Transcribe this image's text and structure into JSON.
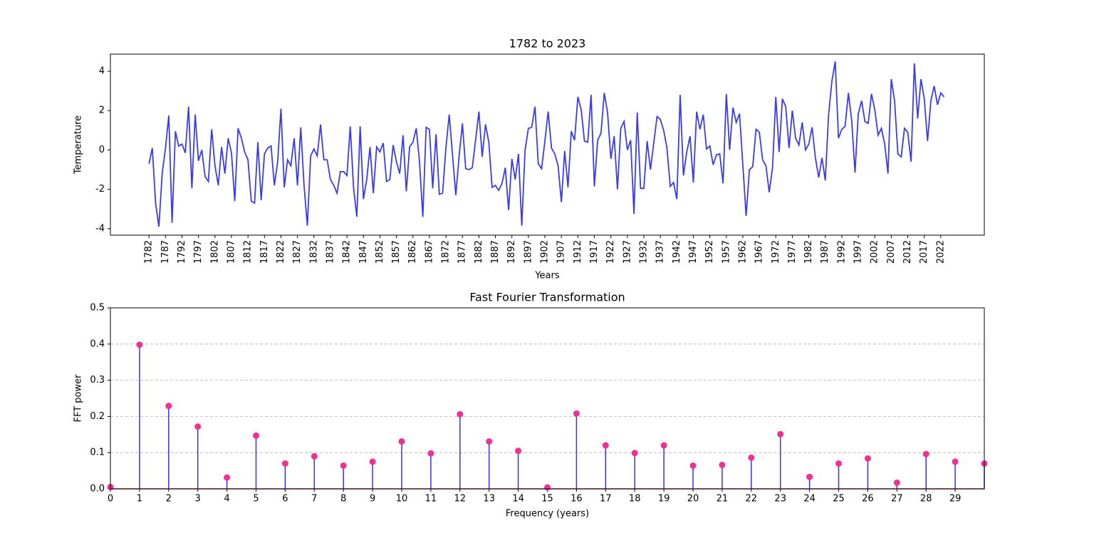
{
  "chart_data": [
    {
      "type": "line",
      "title": "1782 to 2023",
      "xlabel": "Years",
      "ylabel": "Temperature",
      "color": "#3b3bea",
      "x": [
        1782,
        1783,
        1784,
        1785,
        1786,
        1787,
        1788,
        1789,
        1790,
        1791,
        1792,
        1793,
        1794,
        1795,
        1796,
        1797,
        1798,
        1799,
        1800,
        1801,
        1802,
        1803,
        1804,
        1805,
        1806,
        1807,
        1808,
        1809,
        1810,
        1811,
        1812,
        1813,
        1814,
        1815,
        1816,
        1817,
        1818,
        1819,
        1820,
        1821,
        1822,
        1823,
        1824,
        1825,
        1826,
        1827,
        1828,
        1829,
        1830,
        1831,
        1832,
        1833,
        1834,
        1835,
        1836,
        1837,
        1838,
        1839,
        1840,
        1841,
        1842,
        1843,
        1844,
        1845,
        1846,
        1847,
        1848,
        1849,
        1850,
        1851,
        1852,
        1853,
        1854,
        1855,
        1856,
        1857,
        1858,
        1859,
        1860,
        1861,
        1862,
        1863,
        1864,
        1865,
        1866,
        1867,
        1868,
        1869,
        1870,
        1871,
        1872,
        1873,
        1874,
        1875,
        1876,
        1877,
        1878,
        1879,
        1880,
        1881,
        1882,
        1883,
        1884,
        1885,
        1886,
        1887,
        1888,
        1889,
        1890,
        1891,
        1892,
        1893,
        1894,
        1895,
        1896,
        1897,
        1898,
        1899,
        1900,
        1901,
        1902,
        1903,
        1904,
        1905,
        1906,
        1907,
        1908,
        1909,
        1910,
        1911,
        1912,
        1913,
        1914,
        1915,
        1916,
        1917,
        1918,
        1919,
        1920,
        1921,
        1922,
        1923,
        1924,
        1925,
        1926,
        1927,
        1928,
        1929,
        1930,
        1931,
        1932,
        1933,
        1934,
        1935,
        1936,
        1937,
        1938,
        1939,
        1940,
        1941,
        1942,
        1943,
        1944,
        1945,
        1946,
        1947,
        1948,
        1949,
        1950,
        1951,
        1952,
        1953,
        1954,
        1955,
        1956,
        1957,
        1958,
        1959,
        1960,
        1961,
        1962,
        1963,
        1964,
        1965,
        1966,
        1967,
        1968,
        1969,
        1970,
        1971,
        1972,
        1973,
        1974,
        1975,
        1976,
        1977,
        1978,
        1979,
        1980,
        1981,
        1982,
        1983,
        1984,
        1985,
        1986,
        1987,
        1988,
        1989,
        1990,
        1991,
        1992,
        1993,
        1994,
        1995,
        1996,
        1997,
        1998,
        1999,
        2000,
        2001,
        2002,
        2003,
        2004,
        2005,
        2006,
        2007,
        2008,
        2009,
        2010,
        2011,
        2012,
        2013,
        2014,
        2015,
        2016,
        2017,
        2018,
        2019,
        2020,
        2021,
        2022,
        2023
      ],
      "values": [
        -0.7,
        0.1,
        -2.7,
        -3.9,
        -1.2,
        0.1,
        1.75,
        -3.7,
        0.95,
        0.2,
        0.3,
        -0.15,
        2.2,
        -1.95,
        1.8,
        -0.55,
        0.0,
        -1.35,
        -1.6,
        1.05,
        -0.8,
        -1.8,
        0.15,
        -1.2,
        0.6,
        -0.15,
        -2.6,
        1.1,
        0.6,
        -0.1,
        -0.5,
        -2.6,
        -2.7,
        0.4,
        -2.55,
        -0.2,
        0.1,
        0.2,
        -1.8,
        -0.6,
        2.1,
        -1.9,
        -0.5,
        -0.8,
        0.6,
        -1.8,
        1.15,
        -1.8,
        -3.85,
        -0.3,
        0.05,
        -0.3,
        1.3,
        -0.5,
        -0.5,
        -1.5,
        -1.8,
        -2.2,
        -1.1,
        -1.1,
        -1.3,
        1.2,
        -1.9,
        -3.4,
        1.2,
        -2.5,
        -1.5,
        0.15,
        -2.2,
        0.15,
        -0.1,
        0.35,
        -1.6,
        -1.5,
        0.25,
        -0.6,
        -1.2,
        0.75,
        -2.1,
        0.15,
        0.4,
        1.1,
        -0.6,
        -3.4,
        1.15,
        1.05,
        -1.95,
        0.8,
        -2.25,
        -2.2,
        0.1,
        1.8,
        -0.25,
        -2.3,
        -0.3,
        1.35,
        -0.95,
        -1.0,
        -0.9,
        0.5,
        1.95,
        -0.35,
        1.3,
        0.4,
        -1.9,
        -1.8,
        -2.05,
        -1.7,
        -0.9,
        -3.05,
        -0.45,
        -1.5,
        -0.2,
        -3.85,
        0.0,
        1.1,
        1.15,
        2.2,
        -0.7,
        -0.95,
        0.45,
        1.95,
        0.1,
        -0.2,
        -0.8,
        -2.65,
        -0.05,
        -1.9,
        0.95,
        0.5,
        2.7,
        2.05,
        0.45,
        0.4,
        2.8,
        -1.85,
        0.5,
        0.85,
        2.9,
        1.9,
        -0.45,
        0.7,
        -2.0,
        1.1,
        1.45,
        0.0,
        0.5,
        -3.25,
        1.9,
        -1.95,
        -1.95,
        0.45,
        -1.0,
        0.35,
        1.7,
        1.55,
        1.0,
        0.1,
        -1.85,
        -1.65,
        -2.5,
        2.8,
        -1.3,
        -0.1,
        0.7,
        -1.65,
        1.95,
        1.05,
        1.8,
        0.05,
        0.2,
        -0.75,
        -0.25,
        -0.2,
        -1.7,
        2.85,
        0.0,
        2.15,
        1.4,
        1.85,
        -0.75,
        -3.35,
        -1.0,
        -0.85,
        1.05,
        0.9,
        -0.5,
        -0.8,
        -2.15,
        -0.9,
        2.7,
        -0.1,
        2.6,
        2.2,
        0.1,
        2.0,
        0.6,
        0.25,
        1.4,
        0.0,
        0.3,
        1.15,
        -0.4,
        -1.4,
        -0.4,
        -1.55,
        1.8,
        3.5,
        4.5,
        0.6,
        1.05,
        1.2,
        2.9,
        1.5,
        -1.15,
        1.85,
        2.5,
        1.45,
        1.35,
        2.85,
        2.05,
        0.75,
        1.1,
        0.3,
        -1.2,
        3.6,
        2.5,
        -0.2,
        -0.35,
        1.1,
        0.9,
        -0.6,
        4.4,
        1.6,
        3.6,
        2.6,
        0.45,
        2.5,
        3.25,
        2.3,
        2.9,
        2.7
      ],
      "xlim": [
        1770.3,
        2035.2
      ],
      "ylim": [
        -4.33,
        4.87
      ],
      "xticks": [
        1782,
        1787,
        1792,
        1797,
        1802,
        1807,
        1812,
        1817,
        1822,
        1827,
        1832,
        1837,
        1842,
        1847,
        1852,
        1857,
        1862,
        1867,
        1872,
        1877,
        1882,
        1887,
        1892,
        1897,
        1902,
        1907,
        1912,
        1917,
        1922,
        1927,
        1932,
        1937,
        1942,
        1947,
        1952,
        1957,
        1962,
        1967,
        1972,
        1977,
        1982,
        1987,
        1992,
        1997,
        2002,
        2007,
        2012,
        2017,
        2022
      ],
      "yticks": [
        -4,
        -2,
        0,
        2,
        4
      ],
      "grid": false
    },
    {
      "type": "stem",
      "title": "Fast Fourier Transformation",
      "xlabel": "Frequency (years)",
      "ylabel": "FFT power",
      "color": "#3333ee",
      "marker_color": "#f2308f",
      "baseline_color": "#c0304a",
      "x": [
        0,
        1,
        2,
        3,
        4,
        5,
        6,
        7,
        8,
        9,
        10,
        11,
        12,
        13,
        14,
        15,
        16,
        17,
        18,
        19,
        20,
        21,
        22,
        23,
        24,
        25,
        26,
        27,
        28,
        29,
        30
      ],
      "values": [
        0.005,
        0.398,
        0.229,
        0.172,
        0.031,
        0.147,
        0.07,
        0.09,
        0.064,
        0.075,
        0.131,
        0.098,
        0.206,
        0.131,
        0.105,
        0.004,
        0.208,
        0.12,
        0.099,
        0.12,
        0.064,
        0.066,
        0.086,
        0.151,
        0.033,
        0.07,
        0.084,
        0.017,
        0.096,
        0.075,
        0.07
      ],
      "xlim": [
        0,
        30
      ],
      "ylim": [
        0,
        0.5
      ],
      "xticks": [
        0,
        1,
        2,
        3,
        4,
        5,
        6,
        7,
        8,
        9,
        10,
        11,
        12,
        13,
        14,
        15,
        16,
        17,
        18,
        19,
        20,
        21,
        22,
        23,
        24,
        25,
        26,
        27,
        28,
        29
      ],
      "yticks": [
        {
          "value": 0,
          "label": "0.0"
        },
        0.1,
        0.2,
        0.3,
        0.4,
        0.5
      ],
      "grid": true
    }
  ]
}
